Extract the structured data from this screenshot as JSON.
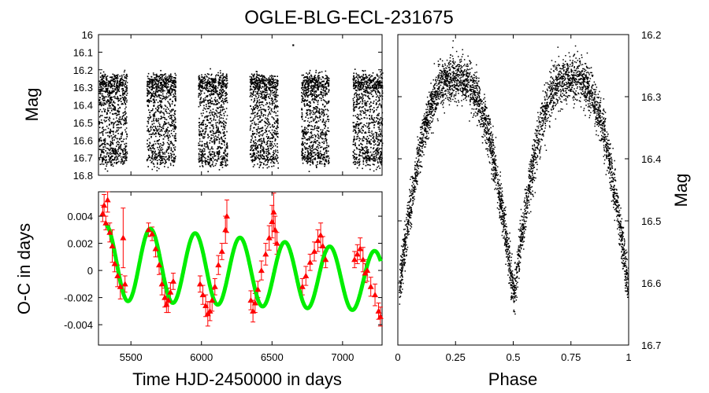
{
  "figure": {
    "title": "OGLE-BLG-ECL-231675"
  },
  "chart_data": [
    {
      "id": "light-curve-time",
      "type": "scatter",
      "title": "",
      "xlabel": "",
      "ylabel": "Mag",
      "xlim": [
        5270,
        7280
      ],
      "ylim": [
        16.8,
        16.0
      ],
      "y_inverted": true,
      "yticks": [
        "16",
        "16.1",
        "16.2",
        "16.3",
        "16.4",
        "16.5",
        "16.6",
        "16.7",
        "16.8"
      ],
      "ytick_values": [
        16.0,
        16.1,
        16.2,
        16.3,
        16.4,
        16.5,
        16.6,
        16.7,
        16.8
      ],
      "observing_seasons": [
        {
          "start": 5270,
          "end": 5470
        },
        {
          "start": 5610,
          "end": 5815
        },
        {
          "start": 5975,
          "end": 6180
        },
        {
          "start": 6340,
          "end": 6540
        },
        {
          "start": 6705,
          "end": 6900
        },
        {
          "start": 7070,
          "end": 7280
        }
      ],
      "mag_max_brightness": 16.23,
      "mag_min_brightness": 16.68,
      "outlier": {
        "x": 6650,
        "y": 16.06
      },
      "marker_color": "#000000"
    },
    {
      "id": "oc-diagram",
      "type": "scatter",
      "title": "",
      "xlabel": "Time HJD-2450000 in days",
      "ylabel": "O-C in days",
      "xlim": [
        5270,
        7280
      ],
      "ylim": [
        -0.0055,
        0.0058
      ],
      "xticks": [
        "5500",
        "6000",
        "6500",
        "7000"
      ],
      "xtick_values": [
        5500,
        6000,
        6500,
        7000
      ],
      "yticks": [
        "0.004",
        "0.002",
        "0",
        "-0.002",
        "-0.004"
      ],
      "ytick_values": [
        0.004,
        0.002,
        0,
        -0.002,
        -0.004
      ],
      "model": {
        "label": "fit",
        "color": "#00ee00",
        "x_start": 5320,
        "x_end": 7270,
        "period_days": 318,
        "amplitude_start": 0.0028,
        "amplitude_end": 0.0022,
        "offset_start": 0.0006,
        "offset_end": -0.0008
      },
      "observations": {
        "color": "#ff0000",
        "marker": "triangle",
        "points": [
          {
            "x": 5300,
            "y": 0.0042,
            "err": 0.0006
          },
          {
            "x": 5310,
            "y": 0.0048,
            "err": 0.0008
          },
          {
            "x": 5322,
            "y": 0.0035,
            "err": 0.0005
          },
          {
            "x": 5335,
            "y": 0.0052,
            "err": 0.0009
          },
          {
            "x": 5350,
            "y": 0.0028,
            "err": 0.0007
          },
          {
            "x": 5368,
            "y": 0.0018,
            "err": 0.0012
          },
          {
            "x": 5385,
            "y": 0.0005,
            "err": 0.0006
          },
          {
            "x": 5405,
            "y": -0.0004,
            "err": 0.0008
          },
          {
            "x": 5425,
            "y": -0.0012,
            "err": 0.0009
          },
          {
            "x": 5445,
            "y": 0.0024,
            "err": 0.0022
          },
          {
            "x": 5458,
            "y": -0.001,
            "err": 0.0006
          },
          {
            "x": 5625,
            "y": 0.003,
            "err": 0.0005
          },
          {
            "x": 5650,
            "y": 0.0027,
            "err": 0.0005
          },
          {
            "x": 5675,
            "y": 0.0016,
            "err": 0.0006
          },
          {
            "x": 5700,
            "y": 0.0004,
            "err": 0.0007
          },
          {
            "x": 5720,
            "y": -0.001,
            "err": 0.0008
          },
          {
            "x": 5740,
            "y": -0.002,
            "err": 0.0007
          },
          {
            "x": 5752,
            "y": -0.0025,
            "err": 0.0006
          },
          {
            "x": 5765,
            "y": -0.0022,
            "err": 0.0009
          },
          {
            "x": 5780,
            "y": -0.0016,
            "err": 0.0007
          },
          {
            "x": 5800,
            "y": -0.0008,
            "err": 0.0006
          },
          {
            "x": 5990,
            "y": -0.001,
            "err": 0.0006
          },
          {
            "x": 6010,
            "y": -0.0018,
            "err": 0.0007
          },
          {
            "x": 6030,
            "y": -0.0026,
            "err": 0.0008
          },
          {
            "x": 6045,
            "y": -0.0032,
            "err": 0.0009
          },
          {
            "x": 6060,
            "y": -0.003,
            "err": 0.0007
          },
          {
            "x": 6075,
            "y": -0.0022,
            "err": 0.0008
          },
          {
            "x": 6095,
            "y": -0.0012,
            "err": 0.0006
          },
          {
            "x": 6120,
            "y": 0.0004,
            "err": 0.0007
          },
          {
            "x": 6145,
            "y": 0.0014,
            "err": 0.0006
          },
          {
            "x": 6170,
            "y": 0.003,
            "err": 0.001
          },
          {
            "x": 6180,
            "y": 0.004,
            "err": 0.0012
          },
          {
            "x": 6350,
            "y": -0.0022,
            "err": 0.0007
          },
          {
            "x": 6365,
            "y": -0.003,
            "err": 0.0008
          },
          {
            "x": 6380,
            "y": -0.0024,
            "err": 0.0007
          },
          {
            "x": 6400,
            "y": -0.0014,
            "err": 0.0006
          },
          {
            "x": 6425,
            "y": 0.0,
            "err": 0.0007
          },
          {
            "x": 6455,
            "y": 0.0012,
            "err": 0.0008
          },
          {
            "x": 6480,
            "y": 0.0024,
            "err": 0.0009
          },
          {
            "x": 6500,
            "y": 0.0036,
            "err": 0.0012
          },
          {
            "x": 6512,
            "y": 0.0043,
            "err": 0.0014
          },
          {
            "x": 6522,
            "y": 0.003,
            "err": 0.001
          },
          {
            "x": 6535,
            "y": 0.002,
            "err": 0.0008
          },
          {
            "x": 6715,
            "y": -0.0012,
            "err": 0.0006
          },
          {
            "x": 6740,
            "y": -0.0004,
            "err": 0.0007
          },
          {
            "x": 6770,
            "y": 0.0006,
            "err": 0.0006
          },
          {
            "x": 6800,
            "y": 0.0014,
            "err": 0.0007
          },
          {
            "x": 6825,
            "y": 0.0022,
            "err": 0.0008
          },
          {
            "x": 6845,
            "y": 0.0026,
            "err": 0.0009
          },
          {
            "x": 6860,
            "y": 0.0018,
            "err": 0.0007
          },
          {
            "x": 6880,
            "y": 0.0008,
            "err": 0.0006
          },
          {
            "x": 7085,
            "y": 0.0008,
            "err": 0.0006
          },
          {
            "x": 7105,
            "y": 0.0012,
            "err": 0.0007
          },
          {
            "x": 7125,
            "y": 0.0016,
            "err": 0.0008
          },
          {
            "x": 7145,
            "y": 0.0008,
            "err": 0.0009
          },
          {
            "x": 7160,
            "y": -0.0002,
            "err": 0.0007
          },
          {
            "x": 7175,
            "y": 0.0,
            "err": 0.0008
          },
          {
            "x": 7200,
            "y": -0.0012,
            "err": 0.0007
          },
          {
            "x": 7230,
            "y": -0.0018,
            "err": 0.0008
          },
          {
            "x": 7255,
            "y": -0.003,
            "err": 0.0006
          },
          {
            "x": 7268,
            "y": -0.0034,
            "err": 0.0007
          }
        ]
      }
    },
    {
      "id": "phased-light-curve",
      "type": "scatter",
      "title": "",
      "xlabel": "Phase",
      "ylabel": "Mag",
      "xlim": [
        0,
        1
      ],
      "ylim": [
        16.7,
        16.2
      ],
      "y_inverted": true,
      "xticks": [
        "0",
        "0.25",
        "0.5",
        "0.75",
        "1"
      ],
      "xtick_values": [
        0,
        0.25,
        0.5,
        0.75,
        1
      ],
      "yticks": [
        "16.2",
        "16.3",
        "16.4",
        "16.5",
        "16.6",
        "16.7"
      ],
      "ytick_values": [
        16.2,
        16.3,
        16.4,
        16.5,
        16.6,
        16.7
      ],
      "primary_minimum": {
        "phase": 0.5,
        "mag": 16.62
      },
      "maxima": [
        {
          "phase": 0.25,
          "mag": 16.27
        },
        {
          "phase": 0.75,
          "mag": 16.27
        }
      ],
      "secondary_minimum": {
        "phase": 1.0,
        "mag": 16.63
      },
      "marker_color": "#000000"
    }
  ]
}
